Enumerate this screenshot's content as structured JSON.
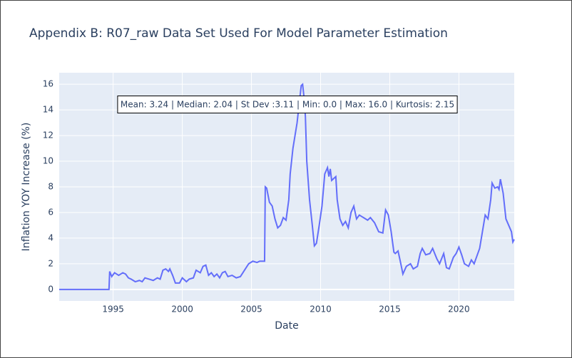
{
  "chart_data": {
    "type": "line",
    "title": "Appendix B: R07_raw Data Set Used For Model Parameter Estimation",
    "x_label": "Date",
    "y_label": "Inflation YOY Increase (%)",
    "annotation": "Mean: 3.24 | Median: 2.04 | St Dev :3.11 | Min: 0.0 | Max: 16.0 | Kurtosis: 2.15",
    "xlim": [
      1991.1,
      2024.0
    ],
    "xticks": [
      1995,
      2000,
      2005,
      2010,
      2015,
      2020
    ],
    "ylim": [
      -0.9,
      16.9
    ],
    "yticks": [
      0,
      2,
      4,
      6,
      8,
      10,
      12,
      14,
      16
    ],
    "grid": true,
    "series": [
      {
        "color": "#636efa",
        "x": [
          1991.1,
          1994.7,
          1994.75,
          1994.9,
          1995.1,
          1995.4,
          1995.7,
          1995.9,
          1996.1,
          1996.3,
          1996.6,
          1996.9,
          1997.1,
          1997.3,
          1997.6,
          1997.9,
          1998.2,
          1998.4,
          1998.6,
          1998.8,
          1999.0,
          1999.1,
          1999.3,
          1999.5,
          1999.8,
          2000.0,
          2000.3,
          2000.5,
          2000.8,
          2001.0,
          2001.3,
          2001.5,
          2001.7,
          2001.9,
          2002.1,
          2002.3,
          2002.5,
          2002.7,
          2002.9,
          2003.1,
          2003.3,
          2003.6,
          2003.9,
          2004.2,
          2004.5,
          2004.8,
          2005.1,
          2005.4,
          2005.6,
          2005.95,
          2006.0,
          2006.1,
          2006.3,
          2006.5,
          2006.7,
          2006.9,
          2007.1,
          2007.3,
          2007.5,
          2007.7,
          2007.8,
          2008.0,
          2008.3,
          2008.6,
          2008.7,
          2008.8,
          2008.9,
          2009.0,
          2009.2,
          2009.4,
          2009.55,
          2009.7,
          2009.9,
          2010.1,
          2010.3,
          2010.5,
          2010.6,
          2010.7,
          2010.8,
          2011.1,
          2011.2,
          2011.4,
          2011.6,
          2011.8,
          2012.0,
          2012.2,
          2012.4,
          2012.6,
          2012.8,
          2013.1,
          2013.4,
          2013.6,
          2013.9,
          2014.2,
          2014.5,
          2014.7,
          2014.9,
          2015.1,
          2015.3,
          2015.4,
          2015.6,
          2015.8,
          2015.95,
          2016.2,
          2016.5,
          2016.7,
          2017.0,
          2017.2,
          2017.35,
          2017.6,
          2017.9,
          2018.1,
          2018.4,
          2018.6,
          2018.9,
          2019.1,
          2019.3,
          2019.6,
          2019.8,
          2020.0,
          2020.2,
          2020.4,
          2020.7,
          2020.9,
          2021.1,
          2021.3,
          2021.5,
          2021.7,
          2021.9,
          2022.1,
          2022.3,
          2022.4,
          2022.6,
          2022.8,
          2022.9,
          2023.0,
          2023.2,
          2023.4,
          2023.6,
          2023.8,
          2023.9,
          2024.0
        ],
        "values": [
          0,
          0,
          1.4,
          1.0,
          1.3,
          1.1,
          1.3,
          1.2,
          0.9,
          0.8,
          0.6,
          0.7,
          0.6,
          0.9,
          0.8,
          0.7,
          0.9,
          0.8,
          1.5,
          1.6,
          1.4,
          1.6,
          1.1,
          0.5,
          0.5,
          0.9,
          0.6,
          0.8,
          0.9,
          1.5,
          1.3,
          1.8,
          1.9,
          1.1,
          1.3,
          1.0,
          1.2,
          0.9,
          1.3,
          1.4,
          1.0,
          1.1,
          0.9,
          1.0,
          1.5,
          2.0,
          2.2,
          2.1,
          2.2,
          2.2,
          8.0,
          7.9,
          6.8,
          6.5,
          5.5,
          4.8,
          5.0,
          5.6,
          5.4,
          7.0,
          9.0,
          11.0,
          13.0,
          15.9,
          16.0,
          15.0,
          13.5,
          10.0,
          7.0,
          5.0,
          3.4,
          3.6,
          5.0,
          6.5,
          9.0,
          9.5,
          8.8,
          9.4,
          8.5,
          8.8,
          7.0,
          5.5,
          5.0,
          5.3,
          4.8,
          6.0,
          6.5,
          5.5,
          5.8,
          5.6,
          5.4,
          5.6,
          5.2,
          4.5,
          4.4,
          6.2,
          5.8,
          4.5,
          2.9,
          2.8,
          3.0,
          2.0,
          1.2,
          1.8,
          2.0,
          1.6,
          1.8,
          2.8,
          3.2,
          2.7,
          2.8,
          3.2,
          2.4,
          2.0,
          2.8,
          1.7,
          1.6,
          2.5,
          2.8,
          3.3,
          2.7,
          2.0,
          1.8,
          2.3,
          2.0,
          2.6,
          3.2,
          4.5,
          5.8,
          5.5,
          7.0,
          8.3,
          7.9,
          8.0,
          7.8,
          8.6,
          7.5,
          5.5,
          5.0,
          4.5,
          3.7,
          3.9
        ]
      }
    ]
  }
}
